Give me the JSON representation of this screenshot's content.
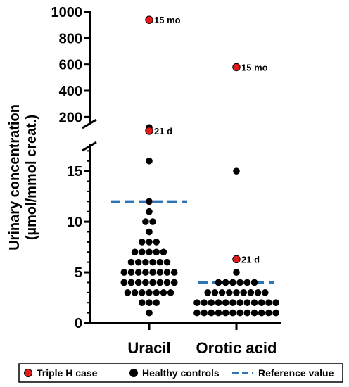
{
  "chart_data": {
    "type": "scatter",
    "ylabel_line1": "Urinary concentration",
    "ylabel_line2": "(µmol/mmol creat.)",
    "categories": [
      "Uracil",
      "Orotic acid"
    ],
    "upper_axis": {
      "ylim": [
        100,
        1000
      ],
      "ticks": [
        200,
        400,
        600,
        800,
        1000
      ]
    },
    "lower_axis": {
      "ylim": [
        0,
        18
      ],
      "ticks": [
        0,
        5,
        10,
        15
      ]
    },
    "series": [
      {
        "name": "Healthy controls",
        "color": "#000000",
        "points": {
          "Uracil": [
            1,
            2,
            2,
            2,
            3,
            3,
            3,
            3,
            3,
            3,
            3,
            4,
            4,
            4,
            4,
            4,
            4,
            4,
            4,
            5,
            5,
            5,
            5,
            5,
            5,
            5,
            5,
            6,
            6,
            6,
            6,
            6,
            6,
            7,
            7,
            7,
            7,
            7,
            8,
            8,
            8,
            9,
            10,
            10,
            11,
            12,
            16,
            105,
            120
          ],
          "Orotic acid": [
            1,
            1,
            1,
            1,
            1,
            1,
            1,
            1,
            1,
            1,
            1,
            1,
            2,
            2,
            2,
            2,
            2,
            2,
            2,
            2,
            2,
            2,
            2,
            2,
            3,
            3,
            3,
            3,
            3,
            3,
            3,
            3,
            3,
            4,
            4,
            4,
            4,
            4,
            4,
            5,
            15
          ]
        }
      },
      {
        "name": "Triple H case",
        "color": "#e31a1c",
        "points": {
          "Uracil": [
            {
              "y": 940,
              "label": "15 mo"
            },
            {
              "y": 95,
              "label": "21 d"
            }
          ],
          "Orotic acid": [
            {
              "y": 580,
              "label": "15 mo"
            },
            {
              "y": 6.3,
              "label": "21 d"
            }
          ]
        }
      }
    ],
    "reference_values": {
      "name": "Reference value",
      "color": "#2e75b6",
      "Uracil": 12,
      "Orotic acid": 4
    },
    "legend": {
      "position": "bottom",
      "items": [
        {
          "label": "Triple H case",
          "kind": "dot",
          "color": "#e31a1c"
        },
        {
          "label": "Healthy controls",
          "kind": "dot",
          "color": "#000000"
        },
        {
          "label": "Reference value",
          "kind": "dash",
          "color": "#2e75b6"
        }
      ]
    }
  }
}
